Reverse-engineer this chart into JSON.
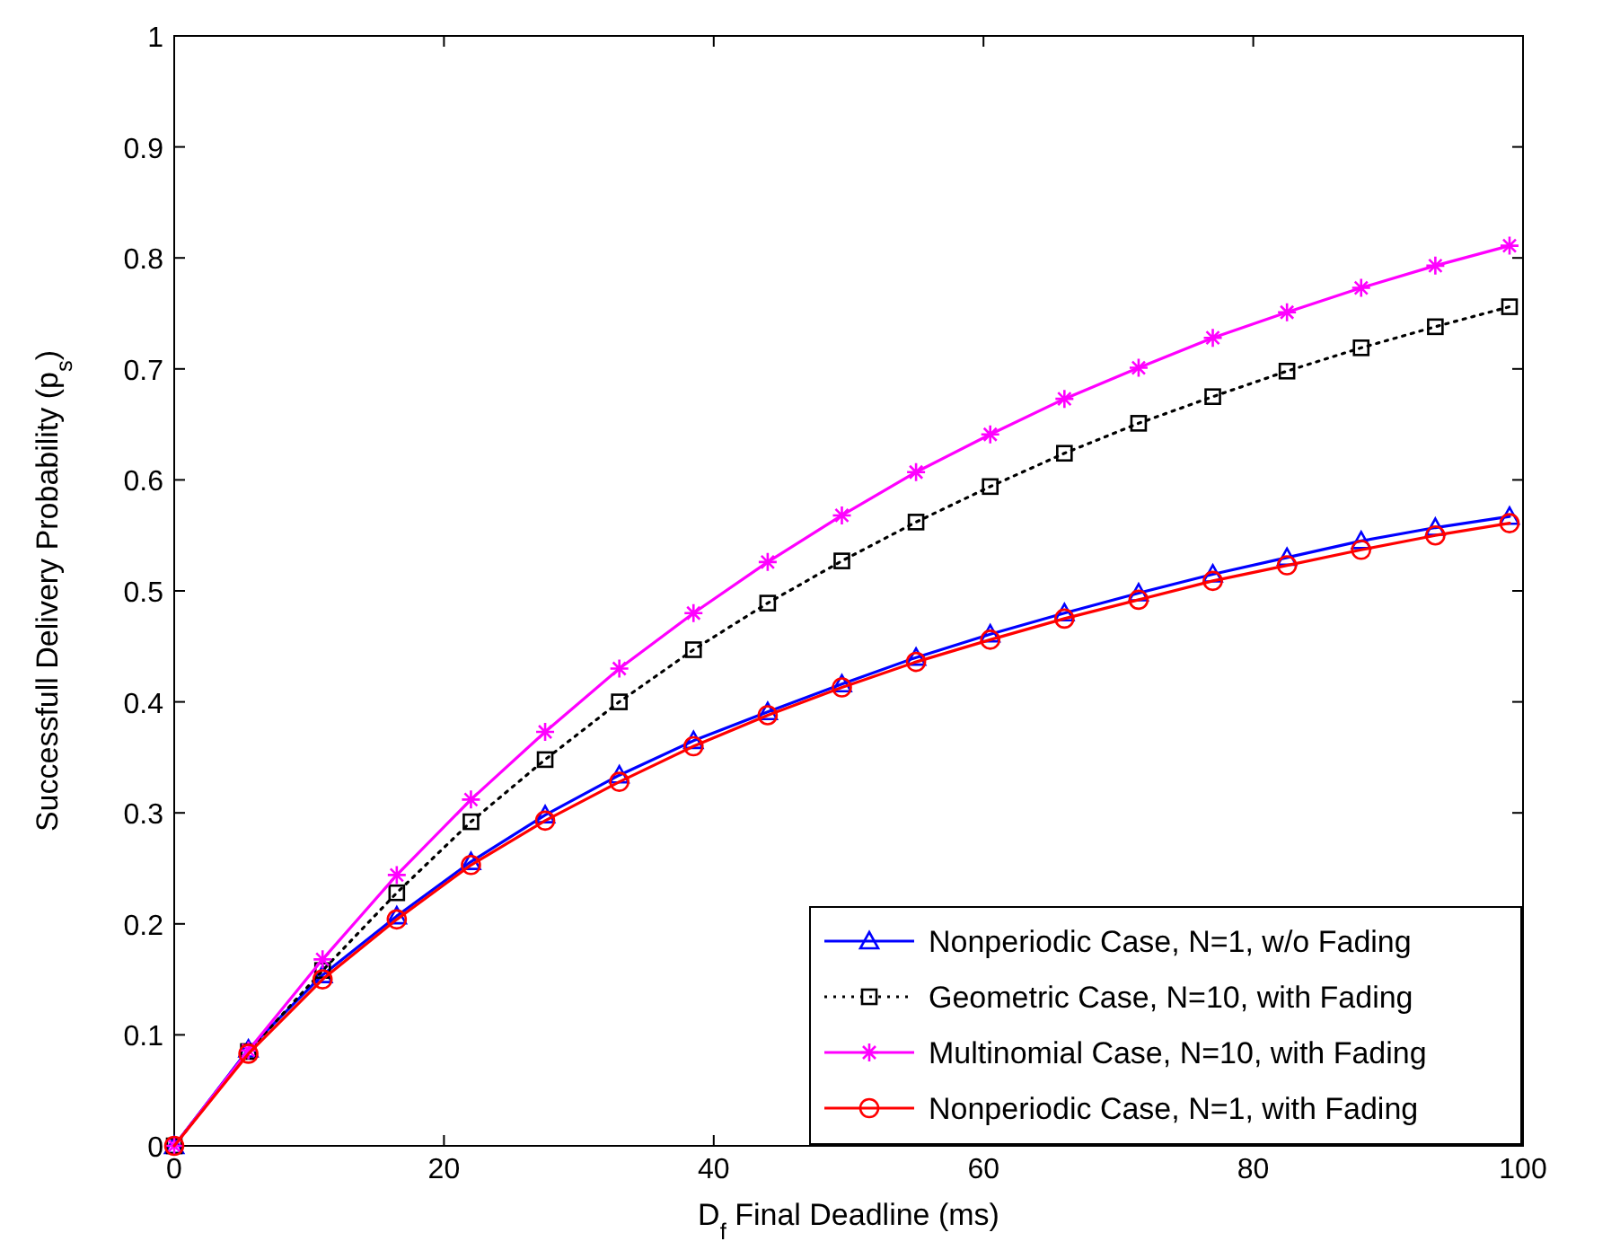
{
  "chart_data": {
    "type": "line",
    "xlabel": "D$_{f}$ Final Deadline (ms)",
    "ylabel": "Successfull Delivery Probability (p$_{s}$)",
    "x": [
      0,
      5.5,
      11,
      16.5,
      22,
      27.5,
      33,
      38.5,
      44,
      49.5,
      55,
      60.5,
      66,
      71.5,
      77,
      82.5,
      88,
      93.5,
      99
    ],
    "xlim": [
      0,
      100
    ],
    "xticks": [
      0,
      20,
      40,
      60,
      80,
      100
    ],
    "ylim": [
      0,
      1
    ],
    "yticks": [
      0,
      0.1,
      0.2,
      0.3,
      0.4,
      0.5,
      0.6,
      0.7,
      0.8,
      0.9,
      1
    ],
    "grid": false,
    "legend": "bottom right",
    "series": [
      {
        "name": "Nonperiodic Case, N=1, w/o Fading",
        "color": "#0000ff",
        "marker": "triangle",
        "line_style": "solid",
        "values": [
          0,
          0.087,
          0.154,
          0.207,
          0.256,
          0.298,
          0.334,
          0.365,
          0.391,
          0.416,
          0.44,
          0.461,
          0.48,
          0.498,
          0.515,
          0.53,
          0.545,
          0.557,
          0.567
        ]
      },
      {
        "name": "Geometric Case, N=10, with Fading",
        "color": "#000000",
        "marker": "square",
        "line_style": "dotted",
        "values": [
          0,
          0.085,
          0.158,
          0.228,
          0.292,
          0.348,
          0.4,
          0.447,
          0.489,
          0.527,
          0.562,
          0.594,
          0.624,
          0.651,
          0.675,
          0.698,
          0.719,
          0.738,
          0.756
        ]
      },
      {
        "name": "Multinomial Case, N=10, with Fading",
        "color": "#ff00ff",
        "marker": "cross",
        "line_style": "solid",
        "values": [
          0,
          0.086,
          0.168,
          0.244,
          0.312,
          0.373,
          0.43,
          0.48,
          0.526,
          0.568,
          0.607,
          0.641,
          0.673,
          0.701,
          0.728,
          0.751,
          0.773,
          0.793,
          0.811
        ]
      },
      {
        "name": "Nonperiodic Case, N=1, with Fading",
        "color": "#ff0000",
        "marker": "circle",
        "line_style": "solid",
        "values": [
          0,
          0.083,
          0.15,
          0.204,
          0.253,
          0.293,
          0.328,
          0.36,
          0.388,
          0.413,
          0.436,
          0.456,
          0.475,
          0.492,
          0.509,
          0.523,
          0.537,
          0.55,
          0.561
        ]
      }
    ]
  }
}
